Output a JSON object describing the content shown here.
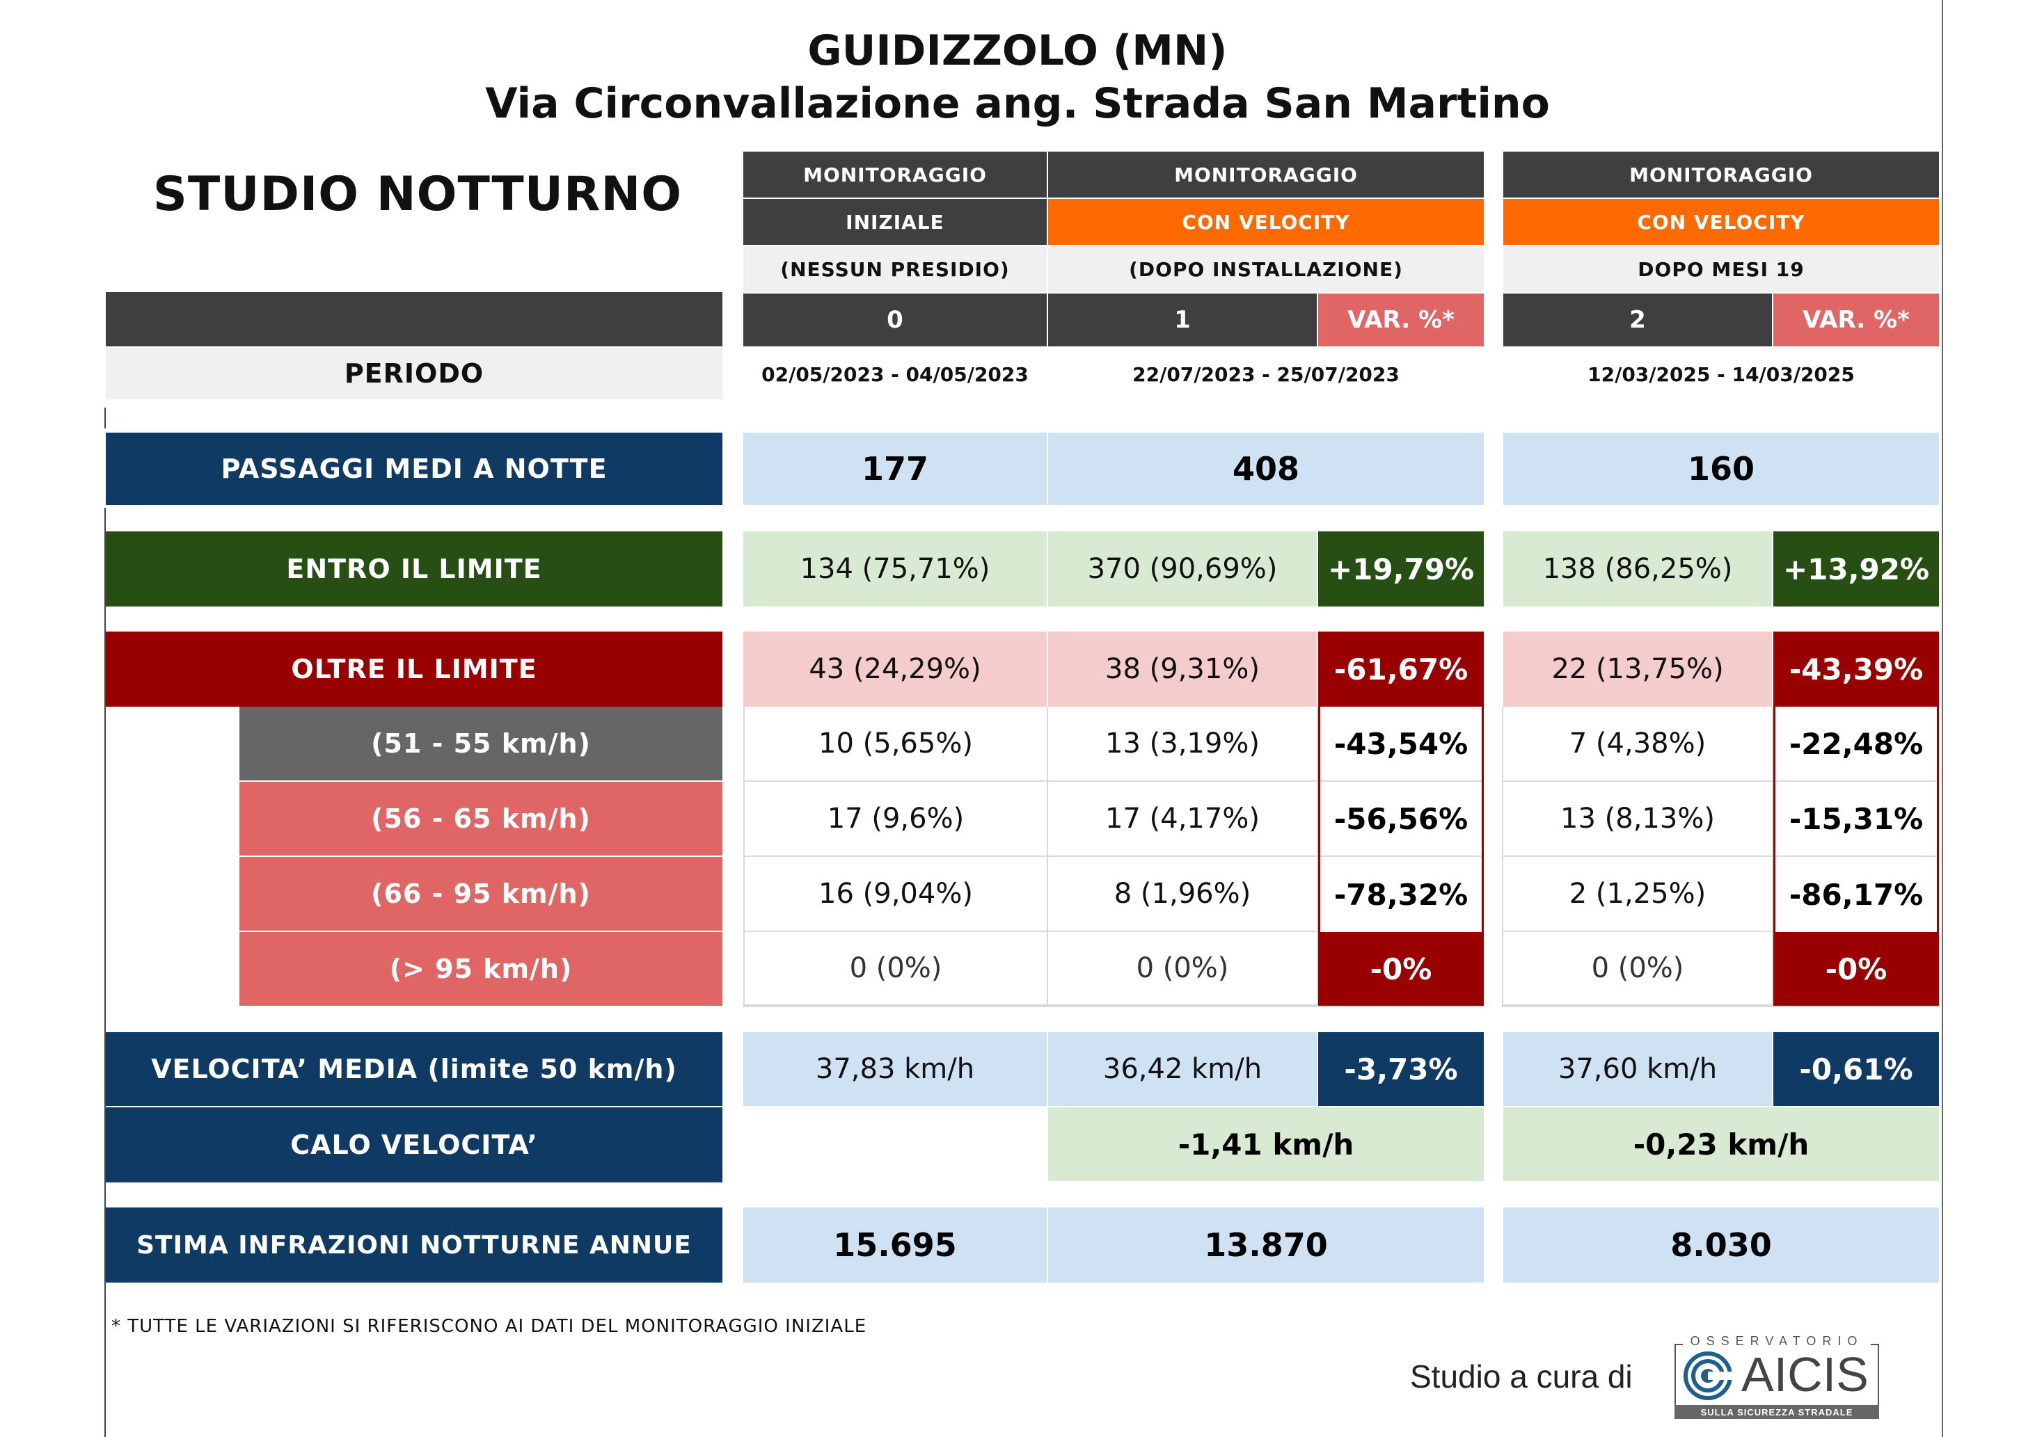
{
  "title": {
    "line1": "GUIDIZZOLO (MN)",
    "line2": "Via Circonvallazione ang. Strada San Martino"
  },
  "study_title": "STUDIO NOTTURNO",
  "columns": {
    "c0": {
      "row1": "MONITORAGGIO",
      "row2": "INIZIALE",
      "row3": "(NESSUN PRESIDIO)",
      "num": "0",
      "period": "02/05/2023 - 04/05/2023"
    },
    "c1": {
      "row1": "MONITORAGGIO",
      "row2": "CON VELOCITY",
      "row3": "(DOPO INSTALLAZIONE)",
      "num": "1",
      "var": "VAR. %*",
      "period": "22/07/2023 - 25/07/2023"
    },
    "c2": {
      "row1": "MONITORAGGIO",
      "row2": "CON VELOCITY",
      "row3": "DOPO MESI  19",
      "num": "2",
      "var": "VAR. %*",
      "period": "12/03/2025 - 14/03/2025"
    }
  },
  "periodo_label": "PERIODO",
  "rows": {
    "passaggi": {
      "label": "PASSAGGI MEDI A NOTTE",
      "v0": "177",
      "v1": "408",
      "v2": "160"
    },
    "entro": {
      "label": "ENTRO IL LIMITE",
      "v0": "134 (75,71%)",
      "v1": "370 (90,69%)",
      "var1": "+19,79%",
      "v2": "138 (86,25%)",
      "var2": "+13,92%"
    },
    "oltre": {
      "label": "OLTRE IL LIMITE",
      "v0": "43 (24,29%)",
      "v1": "38 (9,31%)",
      "var1": "-61,67%",
      "v2": "22 (13,75%)",
      "var2": "-43,39%"
    },
    "r51": {
      "label": "(51 - 55 km/h)",
      "v0": "10 (5,65%)",
      "v1": "13 (3,19%)",
      "var1": "-43,54%",
      "v2": "7 (4,38%)",
      "var2": "-22,48%"
    },
    "r56": {
      "label": "(56 - 65 km/h)",
      "v0": "17 (9,6%)",
      "v1": "17 (4,17%)",
      "var1": "-56,56%",
      "v2": "13 (8,13%)",
      "var2": "-15,31%"
    },
    "r66": {
      "label": "(66 - 95 km/h)",
      "v0": "16 (9,04%)",
      "v1": "8 (1,96%)",
      "var1": "-78,32%",
      "v2": "2 (1,25%)",
      "var2": "-86,17%"
    },
    "r95": {
      "label": "(> 95 km/h)",
      "v0": "0 (0%)",
      "v1": "0 (0%)",
      "var1": "-0%",
      "v2": "0 (0%)",
      "var2": "-0%"
    },
    "velocita": {
      "label": "VELOCITA’ MEDIA (limite 50 km/h)",
      "v0": "37,83 km/h",
      "v1": "36,42 km/h",
      "var1": "-3,73%",
      "v2": "37,60 km/h",
      "var2": "-0,61%"
    },
    "calo": {
      "label": "CALO VELOCITA’",
      "v1": "-1,41 km/h",
      "v2": "-0,23 km/h"
    },
    "stima": {
      "label": "STIMA INFRAZIONI NOTTURNE ANNUE",
      "v0": "15.695",
      "v1": "13.870",
      "v2": "8.030"
    }
  },
  "footnote": "* TUTTE LE VARIAZIONI SI RIFERISCONO AI DATI DEL MONITORAGGIO INIZIALE",
  "credit": {
    "prefix": "Studio a cura di",
    "logo_top": "OSSERVATORIO",
    "logo_name": "AICIS",
    "logo_bottom": "SULLA SICUREZZA STRADALE"
  },
  "colors": {
    "navy": "#0f3a63",
    "dark_green": "#274e13",
    "dark_red": "#990000",
    "soft_red": "#e06666",
    "orange": "#ff6a00",
    "header_grey": "#3f3f3f"
  }
}
